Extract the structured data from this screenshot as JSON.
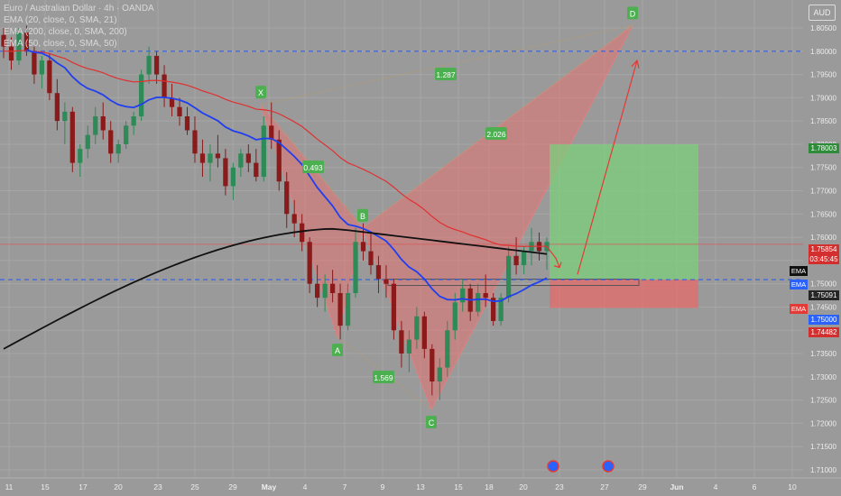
{
  "header": {
    "symbol_line": "Euro / Australian Dollar · 4h · OANDA",
    "currency_badge": "AUD",
    "indicators": [
      "EMA (20, close, 0, SMA, 21)",
      "EMA (200, close, 0, SMA, 200)",
      "EMA (50, close, 0, SMA, 50)"
    ]
  },
  "colors": {
    "background": "#9a9a9a",
    "candle_up": "#2e8b57",
    "candle_down": "#8b1a1a",
    "ema_fast": "#1f3ff0",
    "ema_200": "#111111",
    "ema_50": "#e03030",
    "pattern_fill": "#e57373",
    "target_zone": "#7ccf7c",
    "stop_zone": "#e66a6a",
    "level_line": "#2f5fe8"
  },
  "price_badges": [
    {
      "value": "1.78003",
      "color": "#2e8b3a"
    },
    {
      "value": "1.75854",
      "color": "#d32f2f"
    },
    {
      "value": "03:45:45",
      "color": "#d32f2f"
    },
    {
      "value": "1.75091",
      "color": "#262626"
    },
    {
      "value": "1.75000",
      "color": "#2962ff"
    },
    {
      "value": "1.74482",
      "color": "#d32f2f"
    }
  ],
  "ema_tags": [
    {
      "label": "EMA",
      "color": "#111111"
    },
    {
      "label": "EMA",
      "color": "#2962ff"
    },
    {
      "label": "EMA",
      "color": "#e53935"
    }
  ],
  "chart_data": {
    "type": "candlestick",
    "y_axis": {
      "range": [
        1.709,
        1.8085
      ],
      "ticks": [
        "1.80500",
        "1.80000",
        "1.79500",
        "1.79000",
        "1.78500",
        "1.78000",
        "1.77500",
        "1.77000",
        "1.76500",
        "1.76000",
        "1.75500",
        "1.75000",
        "1.74500",
        "1.74000",
        "1.73500",
        "1.73000",
        "1.72500",
        "1.72000",
        "1.71500",
        "1.71000"
      ]
    },
    "x_axis": {
      "ticks": [
        "11",
        "15",
        "17",
        "20",
        "23",
        "25",
        "29",
        "May",
        "4",
        "7",
        "9",
        "13",
        "15",
        "18",
        "20",
        "23",
        "27",
        "29",
        "Jun",
        "4",
        "6",
        "10"
      ]
    },
    "candles": [
      [
        1.8035,
        1.805,
        1.7985,
        1.801
      ],
      [
        1.801,
        1.803,
        1.796,
        1.798
      ],
      [
        1.798,
        1.805,
        1.797,
        1.804
      ],
      [
        1.804,
        1.8055,
        1.799,
        1.8
      ],
      [
        1.8,
        1.801,
        1.793,
        1.795
      ],
      [
        1.795,
        1.799,
        1.792,
        1.798
      ],
      [
        1.798,
        1.7995,
        1.7895,
        1.791
      ],
      [
        1.791,
        1.794,
        1.783,
        1.785
      ],
      [
        1.785,
        1.789,
        1.78,
        1.787
      ],
      [
        1.787,
        1.788,
        1.774,
        1.776
      ],
      [
        1.776,
        1.78,
        1.773,
        1.779
      ],
      [
        1.779,
        1.784,
        1.777,
        1.782
      ],
      [
        1.782,
        1.788,
        1.78,
        1.786
      ],
      [
        1.786,
        1.789,
        1.781,
        1.783
      ],
      [
        1.783,
        1.785,
        1.776,
        1.778
      ],
      [
        1.778,
        1.781,
        1.776,
        1.78
      ],
      [
        1.78,
        1.785,
        1.779,
        1.784
      ],
      [
        1.784,
        1.787,
        1.782,
        1.786
      ],
      [
        1.786,
        1.796,
        1.785,
        1.795
      ],
      [
        1.795,
        1.801,
        1.793,
        1.799
      ],
      [
        1.799,
        1.8,
        1.793,
        1.795
      ],
      [
        1.795,
        1.797,
        1.788,
        1.79
      ],
      [
        1.79,
        1.793,
        1.786,
        1.788
      ],
      [
        1.788,
        1.79,
        1.784,
        1.786
      ],
      [
        1.786,
        1.788,
        1.782,
        1.783
      ],
      [
        1.783,
        1.786,
        1.776,
        1.778
      ],
      [
        1.778,
        1.781,
        1.773,
        1.776
      ],
      [
        1.776,
        1.78,
        1.772,
        1.778
      ],
      [
        1.778,
        1.782,
        1.775,
        1.777
      ],
      [
        1.777,
        1.779,
        1.769,
        1.771
      ],
      [
        1.771,
        1.776,
        1.768,
        1.775
      ],
      [
        1.775,
        1.779,
        1.773,
        1.778
      ],
      [
        1.778,
        1.78,
        1.774,
        1.776
      ],
      [
        1.776,
        1.779,
        1.772,
        1.773
      ],
      [
        1.773,
        1.786,
        1.772,
        1.784
      ],
      [
        1.784,
        1.789,
        1.779,
        1.781
      ],
      [
        1.781,
        1.783,
        1.77,
        1.772
      ],
      [
        1.772,
        1.774,
        1.762,
        1.765
      ],
      [
        1.765,
        1.768,
        1.76,
        1.763
      ],
      [
        1.763,
        1.765,
        1.757,
        1.759
      ],
      [
        1.759,
        1.76,
        1.748,
        1.75
      ],
      [
        1.75,
        1.754,
        1.745,
        1.747
      ],
      [
        1.747,
        1.752,
        1.744,
        1.75
      ],
      [
        1.75,
        1.753,
        1.746,
        1.748
      ],
      [
        1.748,
        1.75,
        1.738,
        1.741
      ],
      [
        1.741,
        1.75,
        1.74,
        1.748
      ],
      [
        1.748,
        1.762,
        1.747,
        1.759
      ],
      [
        1.759,
        1.763,
        1.755,
        1.757
      ],
      [
        1.757,
        1.761,
        1.752,
        1.754
      ],
      [
        1.754,
        1.756,
        1.748,
        1.751
      ],
      [
        1.751,
        1.754,
        1.747,
        1.75
      ],
      [
        1.75,
        1.751,
        1.738,
        1.74
      ],
      [
        1.74,
        1.742,
        1.732,
        1.735
      ],
      [
        1.735,
        1.74,
        1.731,
        1.738
      ],
      [
        1.738,
        1.745,
        1.736,
        1.743
      ],
      [
        1.743,
        1.744,
        1.734,
        1.736
      ],
      [
        1.736,
        1.737,
        1.726,
        1.729
      ],
      [
        1.729,
        1.734,
        1.725,
        1.732
      ],
      [
        1.732,
        1.742,
        1.73,
        1.74
      ],
      [
        1.74,
        1.748,
        1.738,
        1.746
      ],
      [
        1.746,
        1.751,
        1.744,
        1.749
      ],
      [
        1.749,
        1.75,
        1.742,
        1.744
      ],
      [
        1.744,
        1.75,
        1.743,
        1.748
      ],
      [
        1.748,
        1.752,
        1.745,
        1.747
      ],
      [
        1.747,
        1.748,
        1.741,
        1.742
      ],
      [
        1.742,
        1.748,
        1.741,
        1.747
      ],
      [
        1.747,
        1.758,
        1.746,
        1.756
      ],
      [
        1.756,
        1.76,
        1.752,
        1.754
      ],
      [
        1.754,
        1.758,
        1.752,
        1.757
      ],
      [
        1.757,
        1.762,
        1.754,
        1.759
      ],
      [
        1.759,
        1.761,
        1.755,
        1.757
      ],
      [
        1.757,
        1.76,
        1.753,
        1.759
      ]
    ]
  },
  "pattern": {
    "points": [
      {
        "label": "X",
        "value": 1.7885
      },
      {
        "label": "A",
        "value": 1.7385
      },
      {
        "label": "B",
        "value": 1.762
      },
      {
        "label": "C",
        "value": 1.723
      },
      {
        "label": "D",
        "value": 1.8055
      }
    ],
    "ratios": [
      "0.493",
      "1.569",
      "1.287",
      "2.026"
    ]
  },
  "trade": {
    "entry": 1.7509,
    "target": 1.78,
    "stop": 1.7448,
    "level_top": 1.8,
    "level_mid": 1.75
  },
  "event_icons": [
    {
      "name": "event-icon-1"
    },
    {
      "name": "event-icon-2"
    }
  ]
}
